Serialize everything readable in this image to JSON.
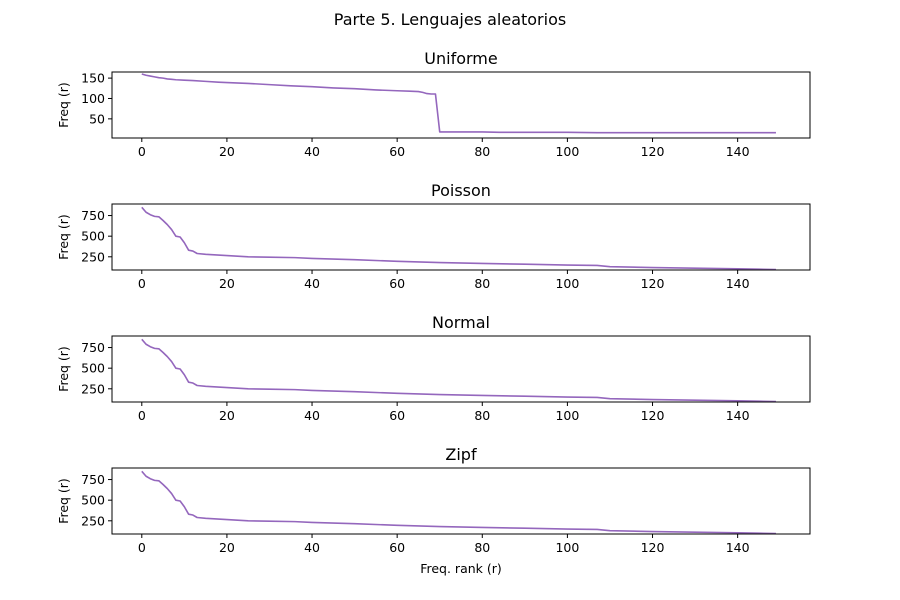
{
  "figure": {
    "suptitle": "Parte 5. Lenguajes aleatorios",
    "xlabel": "Freq. rank (r)",
    "line_color": "#9467bd"
  },
  "chart_data": [
    {
      "type": "line",
      "title": "Uniforme",
      "xlabel": "",
      "ylabel": "Freq (r)",
      "xlim": [
        -7,
        157
      ],
      "ylim": [
        3,
        165
      ],
      "xticks": [
        0,
        20,
        40,
        60,
        80,
        100,
        120,
        140
      ],
      "yticks": [
        50,
        100,
        150
      ],
      "grid": false,
      "series": [
        {
          "x": [
            0,
            1,
            2,
            3,
            4,
            5,
            6,
            7,
            8,
            10,
            12,
            15,
            18,
            20,
            25,
            30,
            35,
            40,
            45,
            50,
            55,
            60,
            63,
            65,
            66,
            67,
            68,
            69,
            70,
            75,
            80,
            84,
            90,
            100,
            107,
            110,
            120,
            130,
            140,
            149
          ],
          "y": [
            160,
            157,
            155,
            153,
            151,
            150,
            148,
            147,
            146,
            145,
            144,
            142,
            140,
            139,
            137,
            134,
            131,
            129,
            126,
            124,
            121,
            119,
            118,
            117,
            115,
            112,
            111,
            111,
            18,
            18,
            18,
            17,
            17,
            17,
            16,
            16,
            16,
            16,
            16,
            16
          ]
        }
      ]
    },
    {
      "type": "line",
      "title": "Poisson",
      "xlabel": "",
      "ylabel": "Freq (r)",
      "xlim": [
        -7,
        157
      ],
      "ylim": [
        90,
        890
      ],
      "xticks": [
        0,
        20,
        40,
        60,
        80,
        100,
        120,
        140
      ],
      "yticks": [
        250,
        500,
        750
      ],
      "grid": false,
      "series": [
        {
          "x": [
            0,
            1,
            2,
            3,
            4,
            5,
            6,
            7,
            8,
            9,
            10,
            11,
            12,
            13,
            15,
            20,
            25,
            30,
            36,
            40,
            50,
            60,
            70,
            80,
            90,
            100,
            107,
            110,
            120,
            130,
            140,
            145,
            149
          ],
          "y": [
            850,
            790,
            760,
            740,
            735,
            690,
            640,
            580,
            500,
            490,
            420,
            330,
            320,
            290,
            280,
            265,
            250,
            245,
            240,
            230,
            215,
            195,
            180,
            170,
            160,
            150,
            145,
            130,
            120,
            112,
            105,
            100,
            95
          ]
        }
      ]
    },
    {
      "type": "line",
      "title": "Normal",
      "xlabel": "",
      "ylabel": "Freq (r)",
      "xlim": [
        -7,
        157
      ],
      "ylim": [
        90,
        890
      ],
      "xticks": [
        0,
        20,
        40,
        60,
        80,
        100,
        120,
        140
      ],
      "yticks": [
        250,
        500,
        750
      ],
      "grid": false,
      "series": [
        {
          "x": [
            0,
            1,
            2,
            3,
            4,
            5,
            6,
            7,
            8,
            9,
            10,
            11,
            12,
            13,
            15,
            20,
            25,
            30,
            36,
            40,
            50,
            60,
            70,
            80,
            90,
            100,
            107,
            110,
            120,
            130,
            140,
            145,
            149
          ],
          "y": [
            850,
            790,
            760,
            740,
            735,
            690,
            640,
            580,
            500,
            490,
            420,
            330,
            320,
            290,
            280,
            265,
            250,
            245,
            240,
            230,
            215,
            195,
            180,
            170,
            160,
            150,
            145,
            130,
            120,
            112,
            105,
            100,
            95
          ]
        }
      ]
    },
    {
      "type": "line",
      "title": "Zipf",
      "xlabel": "Freq. rank (r)",
      "ylabel": "Freq (r)",
      "xlim": [
        -7,
        157
      ],
      "ylim": [
        90,
        890
      ],
      "xticks": [
        0,
        20,
        40,
        60,
        80,
        100,
        120,
        140
      ],
      "yticks": [
        250,
        500,
        750
      ],
      "grid": false,
      "series": [
        {
          "x": [
            0,
            1,
            2,
            3,
            4,
            5,
            6,
            7,
            8,
            9,
            10,
            11,
            12,
            13,
            15,
            20,
            25,
            30,
            36,
            40,
            50,
            60,
            70,
            80,
            90,
            100,
            107,
            110,
            120,
            130,
            140,
            145,
            149
          ],
          "y": [
            850,
            790,
            760,
            740,
            735,
            690,
            640,
            580,
            500,
            490,
            420,
            330,
            320,
            290,
            280,
            265,
            250,
            245,
            240,
            230,
            215,
            195,
            180,
            170,
            160,
            150,
            145,
            130,
            120,
            112,
            105,
            100,
            95
          ]
        }
      ]
    }
  ]
}
